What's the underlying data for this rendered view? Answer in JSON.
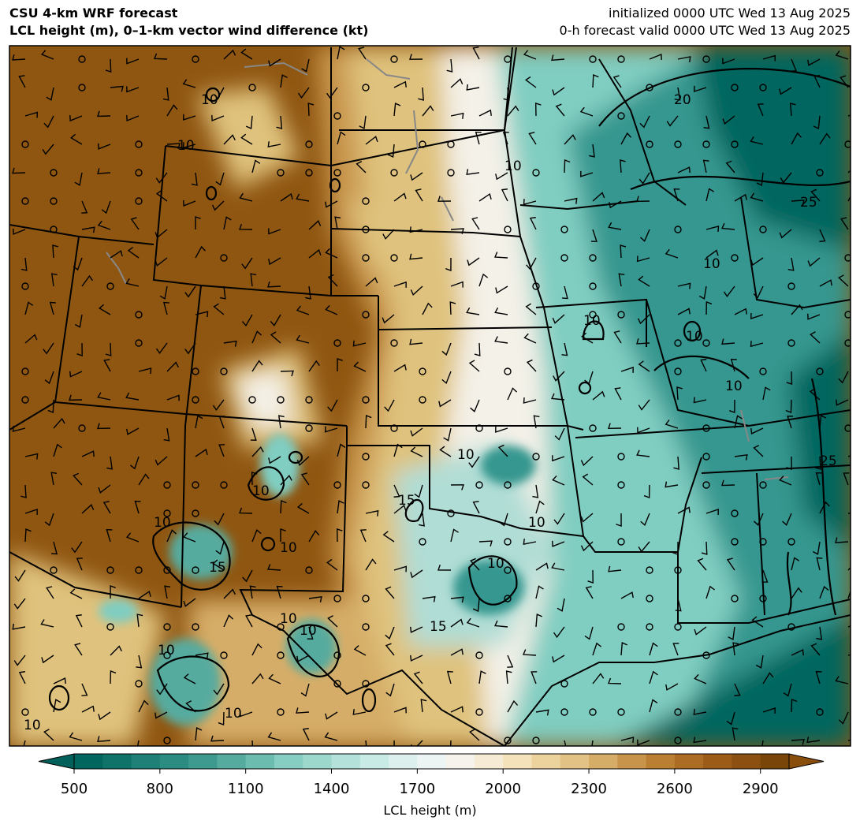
{
  "header": {
    "title_line1": "CSU 4-km WRF forecast",
    "title_line2": "LCL height (m), 0–1-km vector wind difference (kt)",
    "init_line": "initialized 0000 UTC Wed 13 Aug 2025",
    "valid_line": "0-h forecast valid 0000 UTC Wed 13 Aug 2025"
  },
  "colorbar": {
    "label": "LCL height (m)",
    "min": 500,
    "max": 3000,
    "step": 100,
    "extend": "both",
    "ticks": [
      "500",
      "800",
      "1100",
      "1400",
      "1700",
      "2000",
      "2300",
      "2600",
      "2900"
    ],
    "colormap": "BrBG (reversed)",
    "colors": [
      "#01665e",
      "#0f736a",
      "#1e8076",
      "#2c8c82",
      "#3e9a8f",
      "#56ab9f",
      "#6dbcb0",
      "#86cdc2",
      "#9dd8cd",
      "#b4e2da",
      "#c9ebe6",
      "#dcf1ee",
      "#ecf5f3",
      "#f5f3ec",
      "#f6ecd6",
      "#f4e2bb",
      "#ecd39e",
      "#e2c385",
      "#d6ad67",
      "#c8944b",
      "#bb7f34",
      "#ad6c24",
      "#9c5c18",
      "#8c5010",
      "#7a4509"
    ],
    "under_color": "#016059",
    "over_color": "#8a4e0c"
  },
  "contour_labels": [
    "10",
    "10",
    "20",
    "25",
    "10",
    "10",
    "10",
    "10",
    "10",
    "10",
    "15",
    "10",
    "10",
    "15",
    "10",
    "10",
    "10",
    "15",
    "10",
    "10",
    "10",
    "10",
    "10",
    "25"
  ],
  "colors": {
    "brown": "#8f5611",
    "tan": "#dfc27d",
    "white": "#f4f1e8",
    "teal_light": "#80cdc1",
    "teal": "#35978f",
    "teal_dark": "#01665e",
    "boundary": "#000000",
    "lakes": "#888888"
  }
}
